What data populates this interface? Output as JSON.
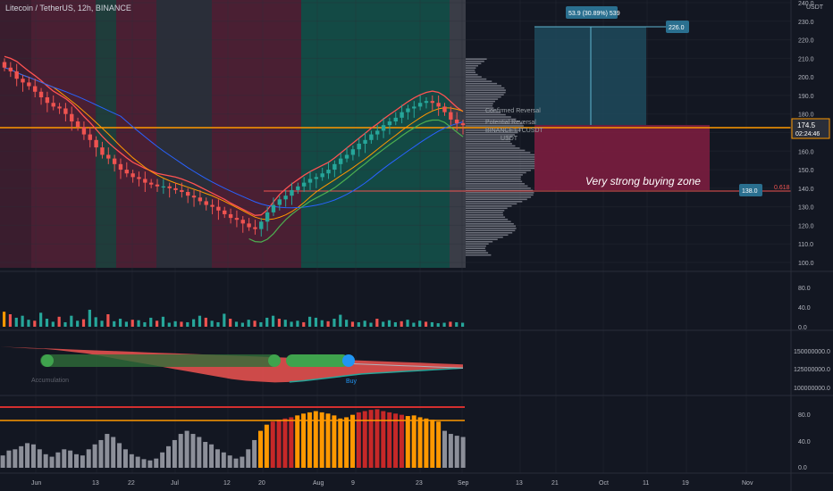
{
  "header": {
    "symbol_title": "Litecoin / TetherUS, 12h, BINANCE"
  },
  "price_axis": {
    "currency": "USDT",
    "ticks": [
      "240.0",
      "230.0",
      "220.0",
      "210.0",
      "200.0",
      "190.0",
      "180.0",
      "170.0",
      "160.0",
      "150.0",
      "140.0",
      "130.0",
      "120.0",
      "110.0",
      "100.0"
    ],
    "current_price": "174.5",
    "countdown": "02:24:46"
  },
  "volume_axis": {
    "ticks": [
      "80.0",
      "40.0",
      "0.0"
    ]
  },
  "flow_axis": {
    "ticks": [
      "150000000.0",
      "125000000.0",
      "100000000.0"
    ]
  },
  "osc_axis": {
    "ticks": [
      "80.0",
      "40.0",
      "0.0"
    ]
  },
  "time_axis": {
    "labels": [
      "Jun",
      "13",
      "22",
      "Jul",
      "12",
      "20",
      "Aug",
      "9",
      "23",
      "Sep",
      "13",
      "21",
      "Oct",
      "11",
      "19",
      "Nov"
    ]
  },
  "annotations": {
    "target_label": "53.9 (30.89%) 539",
    "target_price": "226.0",
    "support_price": "138.0",
    "fib_label": "0.618",
    "zone_label": "Very strong buying zone",
    "confirmed_reversal": "Confirmed Reversal",
    "potential_reversal": "Potential Reversal",
    "profile_ticker": "BINANCE:LTCUSDT",
    "profile_currency": "USDT",
    "accumulation_label": "Accumulation",
    "buy_label": "Buy"
  },
  "colors": {
    "background": "#131722",
    "up": "#26a69a",
    "down": "#ef5350",
    "orange": "#ff9800",
    "target_box": "#1f4a5c",
    "zone_box": "#7b1d3f"
  },
  "chart_data": [
    {
      "type": "line",
      "title": "Litecoin / TetherUS, 12h, BINANCE",
      "ylim": [
        100,
        240
      ],
      "series": [
        {
          "values": [
            205,
            203,
            199,
            197,
            195,
            192,
            189,
            186,
            184,
            183,
            180,
            176,
            173,
            169,
            166,
            162,
            158,
            156,
            153,
            150,
            148,
            146,
            145,
            143,
            142,
            141,
            141,
            140,
            139,
            138,
            136,
            135,
            133,
            131,
            130,
            128,
            126,
            124,
            123,
            121,
            119,
            118,
            122,
            127,
            131,
            134,
            136,
            139,
            141,
            143,
            145,
            146,
            148,
            150,
            153,
            156,
            158,
            161,
            164,
            166,
            169,
            171,
            174,
            176,
            178,
            181,
            183,
            184,
            186,
            187,
            186,
            184,
            181,
            177,
            175,
            174
          ]
        }
      ]
    },
    {
      "type": "bar",
      "title": "",
      "ylim": [
        0,
        100
      ],
      "series": [
        {
          "values": [
            30,
            25,
            18,
            22,
            14,
            12,
            28,
            16,
            10,
            20,
            9,
            22,
            12,
            15,
            34,
            19,
            12,
            25,
            11,
            16,
            10,
            14,
            13,
            9,
            18,
            12,
            20,
            8,
            11,
            10,
            9,
            15,
            22,
            18,
            12,
            9,
            26,
            16,
            10,
            8,
            14,
            12,
            9,
            18,
            22,
            16,
            14,
            10,
            12,
            9,
            20,
            18,
            13,
            11,
            16,
            24,
            14,
            10,
            9,
            12,
            8,
            16,
            10,
            13,
            9,
            11,
            14,
            8,
            12,
            10,
            9,
            7,
            8,
            10,
            9,
            8
          ]
        }
      ]
    },
    {
      "type": "area",
      "title": "",
      "ylim": [
        95000000,
        160000000
      ],
      "series": [
        {
          "values": [
            146000000,
            145000000,
            144000000,
            143500000,
            142000000,
            140000000,
            138000000,
            135000000,
            132000000,
            129000000,
            126000000,
            123000000,
            120000000,
            117000000,
            114000000,
            111000000,
            108000000,
            106000000,
            105000000,
            104000000,
            104500000,
            106000000,
            108000000,
            110000000,
            112000000,
            114000000,
            115000000,
            116000000,
            117000000,
            118000000,
            119000000,
            120000000,
            121000000
          ]
        }
      ]
    },
    {
      "type": "bar",
      "title": "",
      "ylim": [
        0,
        100
      ],
      "series": [
        {
          "values": [
            20,
            28,
            30,
            35,
            40,
            38,
            30,
            22,
            18,
            25,
            30,
            28,
            22,
            20,
            30,
            38,
            45,
            55,
            50,
            40,
            30,
            22,
            18,
            14,
            12,
            15,
            25,
            35,
            45,
            55,
            60,
            55,
            50,
            42,
            38,
            30,
            25,
            20,
            15,
            18,
            30,
            45,
            60,
            70,
            75,
            78,
            80,
            82,
            85,
            88,
            90,
            92,
            90,
            88,
            85,
            80,
            82,
            86,
            90,
            92,
            94,
            95,
            92,
            90,
            88,
            86,
            84,
            85,
            82,
            80,
            78,
            75,
            60,
            55,
            52,
            50
          ]
        }
      ]
    }
  ]
}
